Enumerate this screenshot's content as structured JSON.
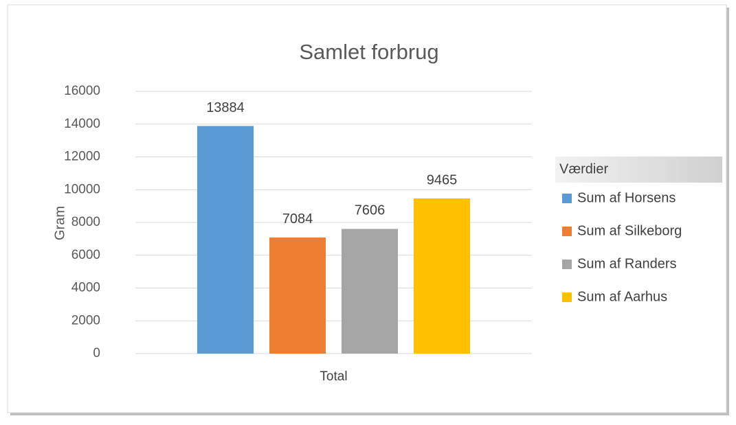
{
  "chart_data": {
    "type": "bar",
    "title": "Samlet forbrug",
    "y_label": "Gram",
    "categories": [
      "Total"
    ],
    "series": [
      {
        "name": "Sum af Horsens",
        "color": "#5b9bd5",
        "values": [
          13884
        ]
      },
      {
        "name": "Sum af Silkeborg",
        "color": "#ed7d31",
        "values": [
          7084
        ]
      },
      {
        "name": "Sum af Randers",
        "color": "#a5a5a5",
        "values": [
          7606
        ]
      },
      {
        "name": "Sum af Aarhus",
        "color": "#ffc000",
        "values": [
          9465
        ]
      }
    ],
    "legend_title": "Værdier",
    "legend": "right",
    "ylim": [
      0,
      16000
    ],
    "yticks": [
      0,
      2000,
      4000,
      6000,
      8000,
      10000,
      12000,
      14000,
      16000
    ],
    "grid": true
  }
}
